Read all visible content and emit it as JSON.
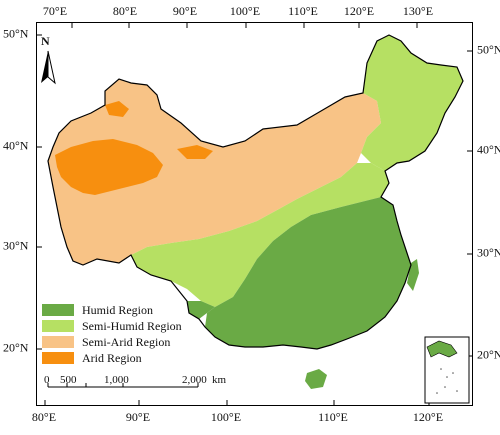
{
  "map": {
    "ticks_top": [
      "70°E",
      "80°E",
      "90°E",
      "100°E",
      "110°E",
      "120°E",
      "130°E"
    ],
    "ticks_bottom": [
      "80°E",
      "90°E",
      "100°E",
      "110°E",
      "120°E"
    ],
    "ticks_left": [
      "50°N",
      "40°N",
      "30°N",
      "20°N"
    ],
    "ticks_right": [
      "50°N",
      "40°N",
      "30°N",
      "20°N"
    ],
    "north_label": "N",
    "legend": [
      {
        "label": "Humid Region",
        "color": "#6aaa45"
      },
      {
        "label": "Semi-Humid Region",
        "color": "#b6e063"
      },
      {
        "label": "Semi-Arid Region",
        "color": "#f8c386"
      },
      {
        "label": "Arid Region",
        "color": "#f78f0f"
      }
    ],
    "scale": {
      "zero": "0",
      "mid1": "500",
      "mid2": "1,000",
      "end": "2,000",
      "unit": "km"
    }
  }
}
